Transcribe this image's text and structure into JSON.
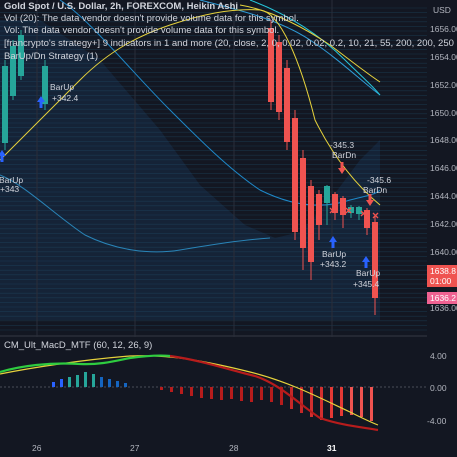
{
  "header": {
    "title": "Gold Spot / U.S. Dollar, 2h, FOREXCOM, Heikin Ashi",
    "vol_warning_1": "Vol (20): The data vendor doesn't provide volume data for this symbol.",
    "vol_warning_2": "Vol: The data vendor doesn't provide volume data for this symbol.",
    "indicators_line": "[francrypto's strategy+] 9 indicators in 1 and more (20, close, 2, 0, 0.02, 0.02, 0.2, 10, 21, 55, 200, 200, 250",
    "strategy_line": "BarUp/Dn Strategy (1)"
  },
  "price_axis": {
    "currency": "USD",
    "ticks": [
      "1656.00",
      "1654.00",
      "1652.00",
      "1650.00",
      "1648.00",
      "1646.00",
      "1644.00",
      "1642.00",
      "1640.00",
      "1636.00"
    ],
    "current_price": "1638.8",
    "countdown": "01:00",
    "secondary_price": "1636.2",
    "current_color": "#ef5350",
    "secondary_color": "#f06292"
  },
  "macd_axis": {
    "ticks": [
      "4.00",
      "0.00",
      "-4.00"
    ]
  },
  "time_axis": {
    "ticks": [
      "26",
      "27",
      "28",
      "31"
    ]
  },
  "macd_legend": "CM_Ult_MacD_MTF (60, 12, 26, 9)",
  "signals": [
    {
      "id": "barup-1",
      "label": "BarUp",
      "value": "+342.4"
    },
    {
      "id": "barup-left",
      "label": "BarUp",
      "value": "+343"
    },
    {
      "id": "bardn-1",
      "label": "BarDn",
      "value": "-345.3"
    },
    {
      "id": "bardn-2",
      "label": "BarDn",
      "value": "-345.6"
    },
    {
      "id": "barup-2",
      "label": "BarUp",
      "value": "+343.2"
    },
    {
      "id": "barup-3",
      "label": "BarUp",
      "value": "+345.4"
    }
  ],
  "colors": {
    "background": "#131722",
    "bull_candle": "#26a69a",
    "bear_candle": "#ef5350",
    "ma_yellow": "#e6d23c",
    "ma_blue": "#2e9bd6",
    "macd_green": "#2ecc40",
    "macd_red": "#b71c1c",
    "arrow_up": "#2962ff",
    "arrow_down": "#ef5350"
  }
}
